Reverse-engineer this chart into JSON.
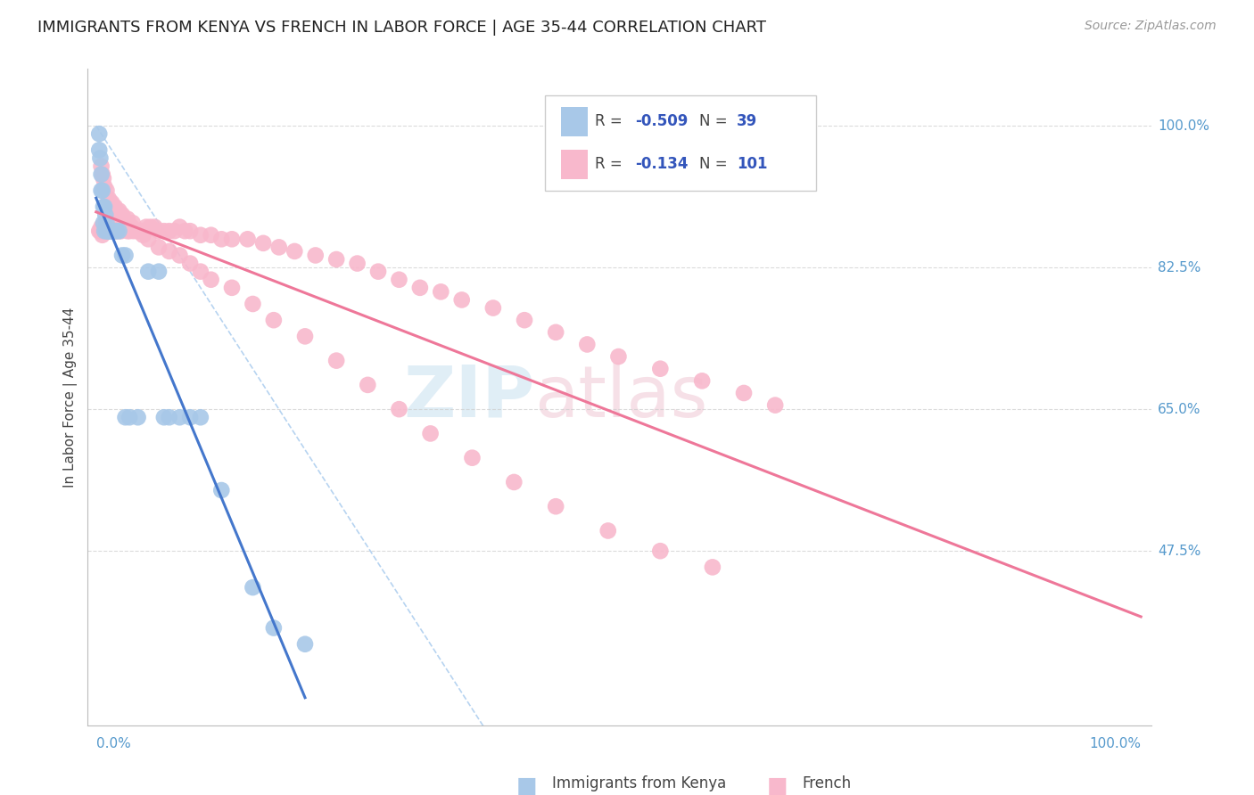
{
  "title": "IMMIGRANTS FROM KENYA VS FRENCH IN LABOR FORCE | AGE 35-44 CORRELATION CHART",
  "source": "Source: ZipAtlas.com",
  "ylabel": "In Labor Force | Age 35-44",
  "background_color": "#ffffff",
  "grid_color": "#cccccc",
  "title_color": "#222222",
  "title_fontsize": 13,
  "kenya_scatter_color": "#a8c8e8",
  "french_scatter_color": "#f8b8cc",
  "kenya_line_color": "#4477cc",
  "french_line_color": "#ee7799",
  "diag_line_color": "#aaccee",
  "kenya_R": -0.509,
  "kenya_N": 39,
  "french_R": -0.134,
  "french_N": 101,
  "y_ticks_right": [
    1.0,
    0.825,
    0.65,
    0.475
  ],
  "y_tick_labels_right": [
    "100.0%",
    "82.5%",
    "65.0%",
    "47.5%"
  ],
  "legend_R_color": "#3355bb",
  "legend_N_color": "#3355bb",
  "kenya_points_x": [
    0.003,
    0.003,
    0.004,
    0.005,
    0.005,
    0.006,
    0.007,
    0.007,
    0.008,
    0.008,
    0.009,
    0.01,
    0.01,
    0.011,
    0.012,
    0.012,
    0.013,
    0.014,
    0.015,
    0.016,
    0.018,
    0.02,
    0.022,
    0.025,
    0.028,
    0.028,
    0.032,
    0.04,
    0.05,
    0.06,
    0.065,
    0.07,
    0.08,
    0.09,
    0.1,
    0.12,
    0.15,
    0.17,
    0.2
  ],
  "kenya_points_y": [
    0.99,
    0.97,
    0.96,
    0.94,
    0.92,
    0.92,
    0.9,
    0.88,
    0.9,
    0.87,
    0.89,
    0.88,
    0.87,
    0.87,
    0.87,
    0.87,
    0.87,
    0.87,
    0.87,
    0.87,
    0.87,
    0.87,
    0.87,
    0.84,
    0.84,
    0.64,
    0.64,
    0.64,
    0.82,
    0.82,
    0.64,
    0.64,
    0.64,
    0.64,
    0.64,
    0.55,
    0.43,
    0.38,
    0.36
  ],
  "french_points_x": [
    0.003,
    0.004,
    0.005,
    0.006,
    0.006,
    0.007,
    0.007,
    0.008,
    0.009,
    0.01,
    0.011,
    0.012,
    0.013,
    0.014,
    0.015,
    0.016,
    0.017,
    0.018,
    0.019,
    0.02,
    0.022,
    0.024,
    0.026,
    0.028,
    0.03,
    0.032,
    0.034,
    0.036,
    0.04,
    0.044,
    0.048,
    0.052,
    0.056,
    0.06,
    0.065,
    0.07,
    0.075,
    0.08,
    0.085,
    0.09,
    0.1,
    0.11,
    0.12,
    0.13,
    0.145,
    0.16,
    0.175,
    0.19,
    0.21,
    0.23,
    0.25,
    0.27,
    0.29,
    0.31,
    0.33,
    0.35,
    0.38,
    0.41,
    0.44,
    0.47,
    0.5,
    0.54,
    0.58,
    0.62,
    0.65,
    0.005,
    0.006,
    0.007,
    0.008,
    0.01,
    0.012,
    0.015,
    0.018,
    0.02,
    0.022,
    0.025,
    0.03,
    0.035,
    0.04,
    0.045,
    0.05,
    0.06,
    0.07,
    0.08,
    0.09,
    0.1,
    0.11,
    0.13,
    0.15,
    0.17,
    0.2,
    0.23,
    0.26,
    0.29,
    0.32,
    0.36,
    0.4,
    0.44,
    0.49,
    0.54,
    0.59
  ],
  "french_points_y": [
    0.87,
    0.87,
    0.875,
    0.865,
    0.875,
    0.87,
    0.875,
    0.87,
    0.87,
    0.875,
    0.87,
    0.87,
    0.875,
    0.87,
    0.875,
    0.875,
    0.87,
    0.87,
    0.87,
    0.875,
    0.87,
    0.87,
    0.875,
    0.875,
    0.87,
    0.87,
    0.875,
    0.87,
    0.87,
    0.87,
    0.875,
    0.875,
    0.875,
    0.87,
    0.87,
    0.87,
    0.87,
    0.875,
    0.87,
    0.87,
    0.865,
    0.865,
    0.86,
    0.86,
    0.86,
    0.855,
    0.85,
    0.845,
    0.84,
    0.835,
    0.83,
    0.82,
    0.81,
    0.8,
    0.795,
    0.785,
    0.775,
    0.76,
    0.745,
    0.73,
    0.715,
    0.7,
    0.685,
    0.67,
    0.655,
    0.95,
    0.94,
    0.935,
    0.925,
    0.92,
    0.91,
    0.905,
    0.9,
    0.895,
    0.895,
    0.89,
    0.885,
    0.88,
    0.87,
    0.865,
    0.86,
    0.85,
    0.845,
    0.84,
    0.83,
    0.82,
    0.81,
    0.8,
    0.78,
    0.76,
    0.74,
    0.71,
    0.68,
    0.65,
    0.62,
    0.59,
    0.56,
    0.53,
    0.5,
    0.475,
    0.455
  ]
}
